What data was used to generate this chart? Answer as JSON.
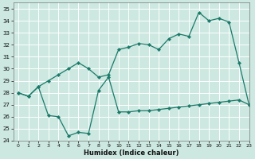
{
  "xlabel": "Humidex (Indice chaleur)",
  "background_color": "#cce8e0",
  "grid_color": "#ffffff",
  "line_color": "#1a7a6a",
  "ylim": [
    24,
    35.5
  ],
  "xlim": [
    -0.5,
    23
  ],
  "yticks": [
    24,
    25,
    26,
    27,
    28,
    29,
    30,
    31,
    32,
    33,
    34,
    35
  ],
  "xticks": [
    0,
    1,
    2,
    3,
    4,
    5,
    6,
    7,
    8,
    9,
    10,
    11,
    12,
    13,
    14,
    15,
    16,
    17,
    18,
    19,
    20,
    21,
    22,
    23
  ],
  "x_upper": [
    0,
    1,
    2,
    3,
    4,
    5,
    6,
    7,
    8,
    9,
    10,
    11,
    12,
    13,
    14,
    15,
    16,
    17,
    18,
    19,
    20,
    21,
    22,
    23
  ],
  "y_upper": [
    28.0,
    27.7,
    28.5,
    29.0,
    29.5,
    30.0,
    30.5,
    30.0,
    29.3,
    29.5,
    31.6,
    31.8,
    32.1,
    32.0,
    31.6,
    32.5,
    32.9,
    32.7,
    34.7,
    34.0,
    34.2,
    33.9,
    30.5,
    27.0
  ],
  "x_lower": [
    0,
    1,
    2,
    3,
    4,
    5,
    6,
    7,
    8,
    9,
    10,
    11,
    12,
    13,
    14,
    15,
    16,
    17,
    18,
    19,
    20,
    21,
    22,
    23
  ],
  "y_lower": [
    28.0,
    27.7,
    28.5,
    26.1,
    26.0,
    24.4,
    24.7,
    24.6,
    28.2,
    29.3,
    26.4,
    26.4,
    26.5,
    26.5,
    26.6,
    26.7,
    26.8,
    26.9,
    27.0,
    27.1,
    27.2,
    27.3,
    27.4,
    27.0
  ]
}
